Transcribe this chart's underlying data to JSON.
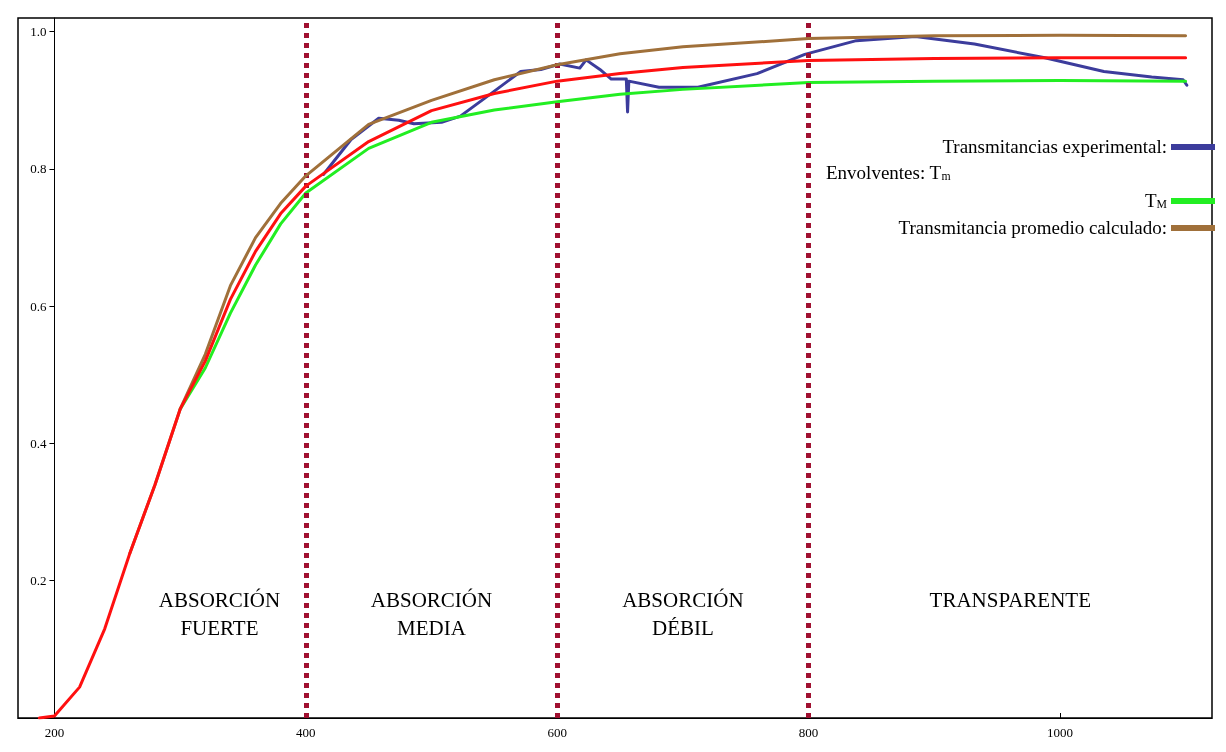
{
  "chart_data": {
    "type": "line",
    "xlim": [
      171,
      1121
    ],
    "ylim": [
      0,
      1.02
    ],
    "xticks": [
      200,
      400,
      600,
      800,
      1000
    ],
    "yticks": [
      0.2,
      0.4,
      0.6,
      0.8,
      {
        "value": 1,
        "label": "1.0"
      }
    ],
    "grid": false,
    "legend": "right",
    "marker": "none",
    "line_style": "solid",
    "series": [
      {
        "name": "Transmitancias experimental:",
        "color": "#3c3c9c",
        "x": [
          414,
          436,
          458,
          474,
          486,
          508,
          523,
          546,
          571,
          587,
          602,
          618,
          623,
          634,
          643,
          655,
          656,
          657,
          681,
          712,
          759,
          797,
          838,
          885,
          932,
          988,
          1035,
          1073,
          1098,
          1101
        ],
        "values": [
          0.792,
          0.843,
          0.874,
          0.871,
          0.866,
          0.868,
          0.877,
          0.908,
          0.942,
          0.945,
          0.953,
          0.947,
          0.959,
          0.945,
          0.931,
          0.931,
          0.883,
          0.928,
          0.919,
          0.919,
          0.939,
          0.967,
          0.987,
          0.993,
          0.982,
          0.962,
          0.942,
          0.934,
          0.93,
          0.922
        ]
      },
      {
        "name": "T$_{M}$",
        "color": "#22ee22",
        "x": [
          300,
          320,
          340,
          360,
          380,
          400,
          450,
          500,
          550,
          600,
          650,
          700,
          800,
          900,
          1000,
          1100
        ],
        "values": [
          0.45,
          0.51,
          0.59,
          0.66,
          0.72,
          0.765,
          0.83,
          0.868,
          0.886,
          0.898,
          0.909,
          0.916,
          0.926,
          0.928,
          0.929,
          0.928
        ]
      },
      {
        "name": "Transmitancia promedio calculado:",
        "color": "#a0703a",
        "x": [
          260,
          280,
          300,
          320,
          340,
          360,
          380,
          400,
          450,
          500,
          550,
          600,
          650,
          700,
          800,
          900,
          1000,
          1100
        ],
        "values": [
          0.24,
          0.34,
          0.45,
          0.53,
          0.63,
          0.7,
          0.75,
          0.79,
          0.865,
          0.9,
          0.93,
          0.952,
          0.968,
          0.978,
          0.99,
          0.994,
          0.995,
          0.994
        ]
      },
      {
        "color": "#ff1010",
        "x": [
          188,
          200,
          220,
          240,
          260,
          280,
          300,
          320,
          340,
          360,
          380,
          400,
          450,
          500,
          550,
          600,
          650,
          700,
          800,
          900,
          1000,
          1100
        ],
        "values": [
          0,
          0.003,
          0.045,
          0.13,
          0.24,
          0.34,
          0.45,
          0.52,
          0.61,
          0.68,
          0.735,
          0.775,
          0.84,
          0.885,
          0.91,
          0.928,
          0.939,
          0.948,
          0.958,
          0.961,
          0.962,
          0.962
        ]
      }
    ],
    "ref_lines": [
      {
        "axis": "x",
        "value": 400,
        "color": "#a01030",
        "line_style": "dotted"
      },
      {
        "axis": "x",
        "value": 600,
        "color": "#a01030",
        "line_style": "dotted"
      },
      {
        "axis": "x",
        "value": 800,
        "color": "#a01030",
        "line_style": "dotted"
      }
    ],
    "annotations": [
      "ABSORCIÓN\nFUERTE",
      "ABSORCIÓN\nMEDIA",
      "ABSORCIÓN\nDÉBIL",
      "TRANSPARENTE",
      "Envolventes: T$_{m}$"
    ]
  }
}
